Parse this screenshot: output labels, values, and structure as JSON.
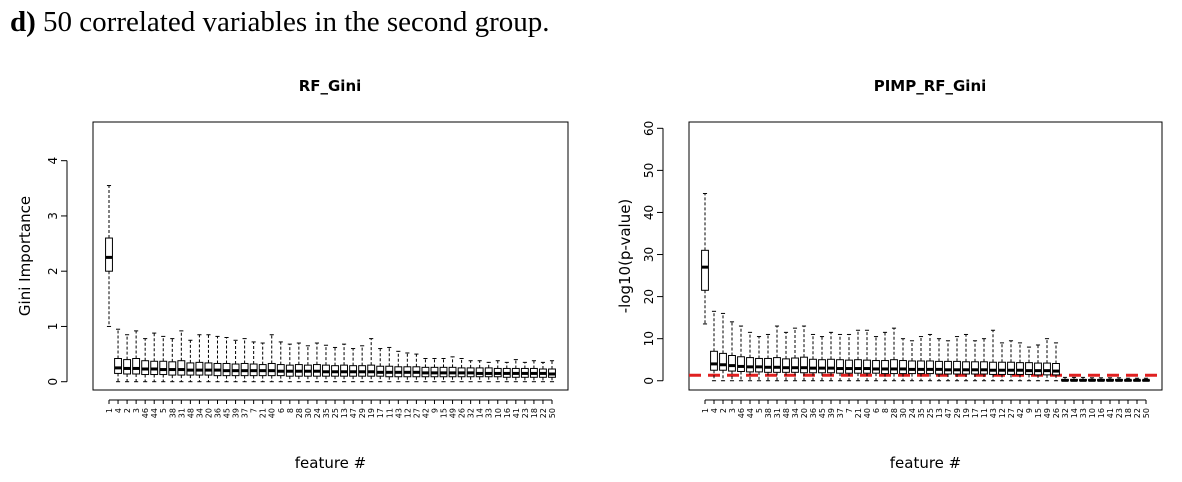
{
  "heading": {
    "label": "d)",
    "text": "50 correlated variables in the second group."
  },
  "chart_data": [
    {
      "type": "boxplot",
      "title": "RF_Gini",
      "xlabel": "feature #",
      "ylabel": "Gini Importance",
      "ylim": [
        -0.15,
        4.7
      ],
      "yticks": [
        "0",
        "1",
        "2",
        "3",
        "4"
      ],
      "ytick_values": [
        0,
        1,
        2,
        3,
        4
      ],
      "grid": false,
      "categories": [
        "1",
        "4",
        "2",
        "3",
        "46",
        "44",
        "5",
        "38",
        "31",
        "48",
        "34",
        "20",
        "36",
        "45",
        "39",
        "37",
        "7",
        "21",
        "40",
        "6",
        "8",
        "28",
        "30",
        "24",
        "35",
        "25",
        "13",
        "47",
        "29",
        "19",
        "17",
        "11",
        "43",
        "12",
        "27",
        "42",
        "9",
        "15",
        "49",
        "26",
        "32",
        "14",
        "33",
        "10",
        "16",
        "41",
        "23",
        "18",
        "22",
        "50"
      ],
      "series": [
        {
          "values": [
            {
              "min": 1.0,
              "q1": 2.0,
              "median": 2.25,
              "q3": 2.6,
              "max": 3.55
            },
            {
              "min": 0.0,
              "q1": 0.15,
              "median": 0.25,
              "q3": 0.42,
              "max": 0.95
            },
            {
              "min": 0.0,
              "q1": 0.14,
              "median": 0.24,
              "q3": 0.4,
              "max": 0.85
            },
            {
              "min": 0.0,
              "q1": 0.14,
              "median": 0.24,
              "q3": 0.42,
              "max": 0.92
            },
            {
              "min": 0.0,
              "q1": 0.13,
              "median": 0.23,
              "q3": 0.38,
              "max": 0.78
            },
            {
              "min": 0.0,
              "q1": 0.13,
              "median": 0.23,
              "q3": 0.37,
              "max": 0.88
            },
            {
              "min": 0.0,
              "q1": 0.13,
              "median": 0.22,
              "q3": 0.37,
              "max": 0.82
            },
            {
              "min": 0.0,
              "q1": 0.12,
              "median": 0.22,
              "q3": 0.36,
              "max": 0.78
            },
            {
              "min": 0.0,
              "q1": 0.12,
              "median": 0.22,
              "q3": 0.38,
              "max": 0.92
            },
            {
              "min": 0.0,
              "q1": 0.12,
              "median": 0.21,
              "q3": 0.34,
              "max": 0.75
            },
            {
              "min": 0.0,
              "q1": 0.12,
              "median": 0.21,
              "q3": 0.35,
              "max": 0.85
            },
            {
              "min": 0.0,
              "q1": 0.12,
              "median": 0.21,
              "q3": 0.34,
              "max": 0.85
            },
            {
              "min": 0.0,
              "q1": 0.11,
              "median": 0.21,
              "q3": 0.33,
              "max": 0.82
            },
            {
              "min": 0.0,
              "q1": 0.11,
              "median": 0.2,
              "q3": 0.33,
              "max": 0.8
            },
            {
              "min": 0.0,
              "q1": 0.11,
              "median": 0.2,
              "q3": 0.32,
              "max": 0.75
            },
            {
              "min": 0.0,
              "q1": 0.11,
              "median": 0.2,
              "q3": 0.33,
              "max": 0.78
            },
            {
              "min": 0.0,
              "q1": 0.11,
              "median": 0.2,
              "q3": 0.32,
              "max": 0.72
            },
            {
              "min": 0.0,
              "q1": 0.11,
              "median": 0.2,
              "q3": 0.31,
              "max": 0.7
            },
            {
              "min": 0.0,
              "q1": 0.11,
              "median": 0.2,
              "q3": 0.33,
              "max": 0.85
            },
            {
              "min": 0.0,
              "q1": 0.11,
              "median": 0.19,
              "q3": 0.31,
              "max": 0.72
            },
            {
              "min": 0.0,
              "q1": 0.1,
              "median": 0.19,
              "q3": 0.3,
              "max": 0.68
            },
            {
              "min": 0.0,
              "q1": 0.1,
              "median": 0.19,
              "q3": 0.31,
              "max": 0.7
            },
            {
              "min": 0.0,
              "q1": 0.1,
              "median": 0.19,
              "q3": 0.3,
              "max": 0.65
            },
            {
              "min": 0.0,
              "q1": 0.1,
              "median": 0.19,
              "q3": 0.31,
              "max": 0.7
            },
            {
              "min": 0.0,
              "q1": 0.1,
              "median": 0.18,
              "q3": 0.3,
              "max": 0.66
            },
            {
              "min": 0.0,
              "q1": 0.1,
              "median": 0.18,
              "q3": 0.29,
              "max": 0.62
            },
            {
              "min": 0.0,
              "q1": 0.1,
              "median": 0.18,
              "q3": 0.3,
              "max": 0.68
            },
            {
              "min": 0.0,
              "q1": 0.1,
              "median": 0.18,
              "q3": 0.29,
              "max": 0.6
            },
            {
              "min": 0.0,
              "q1": 0.1,
              "median": 0.18,
              "q3": 0.29,
              "max": 0.65
            },
            {
              "min": 0.0,
              "q1": 0.1,
              "median": 0.18,
              "q3": 0.3,
              "max": 0.78
            },
            {
              "min": 0.0,
              "q1": 0.1,
              "median": 0.17,
              "q3": 0.28,
              "max": 0.6
            },
            {
              "min": 0.0,
              "q1": 0.09,
              "median": 0.17,
              "q3": 0.28,
              "max": 0.62
            },
            {
              "min": 0.0,
              "q1": 0.09,
              "median": 0.17,
              "q3": 0.27,
              "max": 0.55
            },
            {
              "min": 0.0,
              "q1": 0.09,
              "median": 0.17,
              "q3": 0.27,
              "max": 0.52
            },
            {
              "min": 0.0,
              "q1": 0.09,
              "median": 0.17,
              "q3": 0.27,
              "max": 0.5
            },
            {
              "min": 0.0,
              "q1": 0.09,
              "median": 0.16,
              "q3": 0.26,
              "max": 0.42
            },
            {
              "min": 0.0,
              "q1": 0.09,
              "median": 0.16,
              "q3": 0.26,
              "max": 0.42
            },
            {
              "min": 0.0,
              "q1": 0.09,
              "median": 0.16,
              "q3": 0.26,
              "max": 0.42
            },
            {
              "min": 0.0,
              "q1": 0.09,
              "median": 0.16,
              "q3": 0.26,
              "max": 0.45
            },
            {
              "min": 0.0,
              "q1": 0.09,
              "median": 0.16,
              "q3": 0.25,
              "max": 0.42
            },
            {
              "min": 0.0,
              "q1": 0.09,
              "median": 0.16,
              "q3": 0.25,
              "max": 0.38
            },
            {
              "min": 0.0,
              "q1": 0.09,
              "median": 0.15,
              "q3": 0.25,
              "max": 0.38
            },
            {
              "min": 0.0,
              "q1": 0.09,
              "median": 0.15,
              "q3": 0.25,
              "max": 0.35
            },
            {
              "min": 0.0,
              "q1": 0.09,
              "median": 0.15,
              "q3": 0.24,
              "max": 0.38
            },
            {
              "min": 0.0,
              "q1": 0.08,
              "median": 0.15,
              "q3": 0.24,
              "max": 0.35
            },
            {
              "min": 0.0,
              "q1": 0.08,
              "median": 0.15,
              "q3": 0.24,
              "max": 0.4
            },
            {
              "min": 0.0,
              "q1": 0.08,
              "median": 0.15,
              "q3": 0.24,
              "max": 0.35
            },
            {
              "min": 0.0,
              "q1": 0.08,
              "median": 0.15,
              "q3": 0.24,
              "max": 0.38
            },
            {
              "min": 0.0,
              "q1": 0.08,
              "median": 0.15,
              "q3": 0.23,
              "max": 0.35
            },
            {
              "min": 0.0,
              "q1": 0.08,
              "median": 0.14,
              "q3": 0.23,
              "max": 0.38
            }
          ]
        }
      ]
    },
    {
      "type": "boxplot",
      "title": "PIMP_RF_Gini",
      "xlabel": "feature #",
      "ylabel": "-log10(p-value)",
      "ylim": [
        -2.2,
        61.5
      ],
      "yticks": [
        "0",
        "10",
        "20",
        "30",
        "40",
        "50",
        "60"
      ],
      "ytick_values": [
        0,
        10,
        20,
        30,
        40,
        50,
        60
      ],
      "grid": false,
      "threshold": {
        "value": 1.3,
        "color": "#e02020",
        "style": "dashed"
      },
      "categories": [
        "1",
        "4",
        "2",
        "3",
        "46",
        "44",
        "5",
        "38",
        "31",
        "48",
        "34",
        "20",
        "36",
        "45",
        "39",
        "37",
        "7",
        "21",
        "40",
        "6",
        "8",
        "28",
        "30",
        "24",
        "35",
        "25",
        "13",
        "47",
        "29",
        "19",
        "17",
        "11",
        "43",
        "12",
        "27",
        "42",
        "9",
        "15",
        "49",
        "26",
        "32",
        "14",
        "33",
        "10",
        "16",
        "41",
        "23",
        "18",
        "22",
        "50"
      ],
      "series": [
        {
          "values": [
            {
              "min": 13.5,
              "q1": 21.5,
              "median": 27.0,
              "q3": 31.0,
              "max": 44.5
            },
            {
              "min": 0.0,
              "q1": 2.5,
              "median": 4.0,
              "q3": 7.0,
              "max": 16.5
            },
            {
              "min": 0.0,
              "q1": 2.5,
              "median": 3.8,
              "q3": 6.5,
              "max": 16.0
            },
            {
              "min": 0.0,
              "q1": 2.3,
              "median": 3.6,
              "q3": 6.0,
              "max": 14.0
            },
            {
              "min": 0.0,
              "q1": 2.2,
              "median": 3.4,
              "q3": 5.7,
              "max": 13.0
            },
            {
              "min": 0.0,
              "q1": 2.1,
              "median": 3.3,
              "q3": 5.5,
              "max": 11.5
            },
            {
              "min": 0.0,
              "q1": 2.1,
              "median": 3.3,
              "q3": 5.3,
              "max": 10.5
            },
            {
              "min": 0.0,
              "q1": 2.0,
              "median": 3.2,
              "q3": 5.3,
              "max": 11.0
            },
            {
              "min": 0.0,
              "q1": 2.0,
              "median": 3.2,
              "q3": 5.5,
              "max": 13.0
            },
            {
              "min": 0.0,
              "q1": 2.0,
              "median": 3.1,
              "q3": 5.2,
              "max": 11.5
            },
            {
              "min": 0.0,
              "q1": 2.0,
              "median": 3.1,
              "q3": 5.4,
              "max": 12.5
            },
            {
              "min": 0.0,
              "q1": 1.9,
              "median": 3.1,
              "q3": 5.6,
              "max": 13.0
            },
            {
              "min": 0.0,
              "q1": 1.9,
              "median": 3.0,
              "q3": 5.1,
              "max": 11.0
            },
            {
              "min": 0.0,
              "q1": 1.9,
              "median": 3.0,
              "q3": 5.0,
              "max": 10.5
            },
            {
              "min": 0.0,
              "q1": 1.9,
              "median": 3.0,
              "q3": 5.1,
              "max": 11.5
            },
            {
              "min": 0.0,
              "q1": 1.8,
              "median": 2.9,
              "q3": 5.0,
              "max": 11.0
            },
            {
              "min": 0.0,
              "q1": 1.8,
              "median": 2.9,
              "q3": 4.9,
              "max": 11.0
            },
            {
              "min": 0.0,
              "q1": 1.8,
              "median": 2.9,
              "q3": 5.0,
              "max": 12.0
            },
            {
              "min": 0.0,
              "q1": 1.8,
              "median": 2.9,
              "q3": 4.9,
              "max": 12.0
            },
            {
              "min": 0.0,
              "q1": 1.8,
              "median": 2.8,
              "q3": 4.8,
              "max": 10.5
            },
            {
              "min": 0.0,
              "q1": 1.7,
              "median": 2.8,
              "q3": 4.8,
              "max": 11.5
            },
            {
              "min": 0.0,
              "q1": 1.7,
              "median": 2.8,
              "q3": 5.0,
              "max": 12.5
            },
            {
              "min": 0.0,
              "q1": 1.7,
              "median": 2.8,
              "q3": 4.8,
              "max": 10.0
            },
            {
              "min": 0.0,
              "q1": 1.7,
              "median": 2.7,
              "q3": 4.7,
              "max": 9.5
            },
            {
              "min": 0.0,
              "q1": 1.7,
              "median": 2.7,
              "q3": 4.7,
              "max": 10.5
            },
            {
              "min": 0.0,
              "q1": 1.7,
              "median": 2.7,
              "q3": 4.7,
              "max": 11.0
            },
            {
              "min": 0.0,
              "q1": 1.6,
              "median": 2.7,
              "q3": 4.6,
              "max": 10.0
            },
            {
              "min": 0.0,
              "q1": 1.6,
              "median": 2.6,
              "q3": 4.6,
              "max": 9.5
            },
            {
              "min": 0.0,
              "q1": 1.6,
              "median": 2.6,
              "q3": 4.6,
              "max": 10.5
            },
            {
              "min": 0.0,
              "q1": 1.6,
              "median": 2.6,
              "q3": 4.5,
              "max": 11.0
            },
            {
              "min": 0.0,
              "q1": 1.6,
              "median": 2.6,
              "q3": 4.5,
              "max": 9.5
            },
            {
              "min": 0.0,
              "q1": 1.6,
              "median": 2.6,
              "q3": 4.5,
              "max": 10.0
            },
            {
              "min": 0.0,
              "q1": 1.5,
              "median": 2.5,
              "q3": 4.4,
              "max": 12.0
            },
            {
              "min": 0.0,
              "q1": 1.5,
              "median": 2.5,
              "q3": 4.4,
              "max": 9.0
            },
            {
              "min": 0.0,
              "q1": 1.5,
              "median": 2.5,
              "q3": 4.4,
              "max": 9.5
            },
            {
              "min": 0.0,
              "q1": 1.5,
              "median": 2.5,
              "q3": 4.3,
              "max": 9.0
            },
            {
              "min": 0.0,
              "q1": 1.5,
              "median": 2.4,
              "q3": 4.3,
              "max": 8.0
            },
            {
              "min": 0.0,
              "q1": 1.4,
              "median": 2.4,
              "q3": 4.2,
              "max": 8.5
            },
            {
              "min": 0.0,
              "q1": 1.4,
              "median": 2.4,
              "q3": 4.2,
              "max": 10.0
            },
            {
              "min": 0.0,
              "q1": 1.4,
              "median": 2.3,
              "q3": 4.1,
              "max": 9.0
            },
            {
              "min": 0.0,
              "q1": 0.0,
              "median": 0.1,
              "q3": 0.3,
              "max": 0.8
            },
            {
              "min": 0.0,
              "q1": 0.0,
              "median": 0.1,
              "q3": 0.3,
              "max": 0.8
            },
            {
              "min": 0.0,
              "q1": 0.0,
              "median": 0.1,
              "q3": 0.3,
              "max": 0.8
            },
            {
              "min": 0.0,
              "q1": 0.0,
              "median": 0.1,
              "q3": 0.3,
              "max": 0.7
            },
            {
              "min": 0.0,
              "q1": 0.0,
              "median": 0.1,
              "q3": 0.3,
              "max": 0.7
            },
            {
              "min": 0.0,
              "q1": 0.0,
              "median": 0.1,
              "q3": 0.3,
              "max": 0.7
            },
            {
              "min": 0.0,
              "q1": 0.0,
              "median": 0.1,
              "q3": 0.3,
              "max": 0.7
            },
            {
              "min": 0.0,
              "q1": 0.0,
              "median": 0.1,
              "q3": 0.2,
              "max": 0.6
            },
            {
              "min": 0.0,
              "q1": 0.0,
              "median": 0.1,
              "q3": 0.2,
              "max": 0.6
            },
            {
              "min": 0.0,
              "q1": 0.0,
              "median": 0.1,
              "q3": 0.2,
              "max": 0.6
            }
          ]
        }
      ]
    }
  ]
}
